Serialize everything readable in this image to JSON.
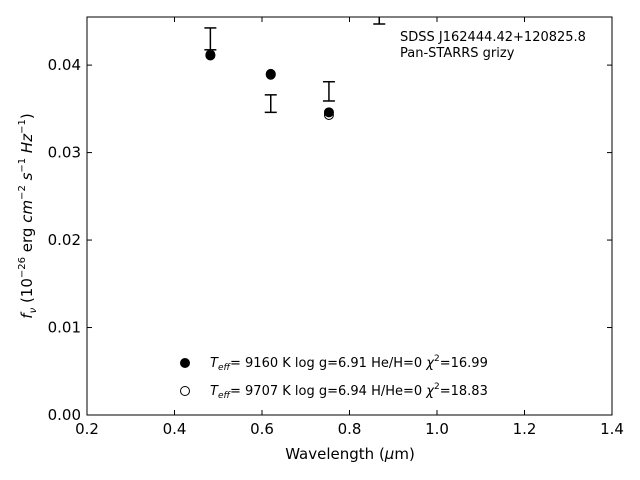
{
  "chart_data": {
    "type": "scatter",
    "xlabel_prefix": "Wavelength (",
    "xlabel_mu": "μ",
    "xlabel_suffix": "m)",
    "ylabel": {
      "f": "f",
      "nu": "ν",
      "open": " (10",
      "exp_26": "−26",
      "erg": " erg ",
      "cm": "cm",
      "exp_cm": "−2",
      "s": " s",
      "exp_s": "−1",
      "hz": " Hz",
      "exp_hz": "−1",
      "close": ")"
    },
    "xlim": [
      0.2,
      1.4
    ],
    "ylim": [
      0.0,
      0.0455
    ],
    "x_ticks": [
      0.2,
      0.4,
      0.6,
      0.8,
      1.0,
      1.2,
      1.4
    ],
    "x_tick_labels": [
      "0.2",
      "0.4",
      "0.6",
      "0.8",
      "1.0",
      "1.2",
      "1.4"
    ],
    "y_ticks": [
      0.0,
      0.01,
      0.02,
      0.03,
      0.04
    ],
    "y_tick_labels": [
      "0.00",
      "0.01",
      "0.02",
      "0.03",
      "0.04"
    ],
    "annotation": [
      "SDSS J162444.42+120825.8",
      "Pan-STARRS grizy"
    ],
    "observed": [
      {
        "x": 0.482,
        "y": 0.043,
        "err": 0.00125
      },
      {
        "x": 0.62,
        "y": 0.0356,
        "err": 0.001
      },
      {
        "x": 0.753,
        "y": 0.037,
        "err": 0.0011
      },
      {
        "x": 0.868,
        "y": 0.046,
        "err": 0.0013
      }
    ],
    "series": [
      {
        "marker": "filled",
        "points": [
          {
            "x": 0.482,
            "y": 0.0411
          },
          {
            "x": 0.62,
            "y": 0.039
          },
          {
            "x": 0.753,
            "y": 0.0346
          }
        ],
        "legend": {
          "teff_label": "T",
          "teff_sub": "eff",
          "rest": "=  9160 K  log g=6.91  He/H=0  ",
          "chi": "χ",
          "chi_sup": "2",
          "chi_val": "=16.99"
        }
      },
      {
        "marker": "open",
        "points": [
          {
            "x": 0.482,
            "y": 0.0412
          },
          {
            "x": 0.62,
            "y": 0.0389
          },
          {
            "x": 0.753,
            "y": 0.0343
          }
        ],
        "legend": {
          "teff_label": "T",
          "teff_sub": "eff",
          "rest": "=  9707 K  log g=6.94  H/He=0  ",
          "chi": "χ",
          "chi_sup": "2",
          "chi_val": "=18.83"
        }
      }
    ],
    "colors": {
      "marker": "#000000",
      "axis": "#000000",
      "background": "#ffffff"
    }
  }
}
